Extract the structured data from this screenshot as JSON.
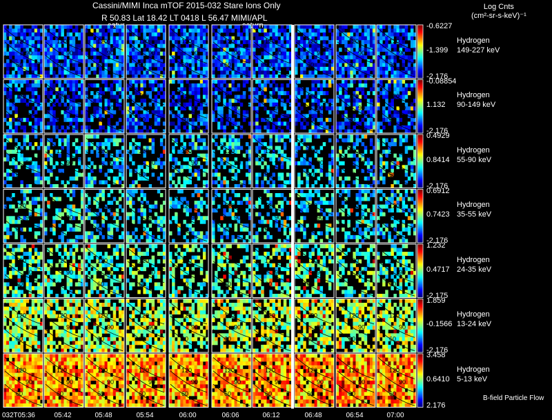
{
  "header": {
    "title": "Cassini/MIMI Inca mTOF  2015-032   Stare   Ions Only",
    "subtitle": "R        50.83 Lat 18.42 LT 0418 L         56.47  MIMI/APL",
    "units_line1": "Log Cnts",
    "units_line2": "(cm²-sr-s-keV)⁻¹",
    "saturn_labels": [
      "satur",
      "saturn"
    ]
  },
  "chart_data": {
    "type": "heatmap",
    "title": "Cassini/MIMI Inca mTOF  2015-032   Stare   Ions Only",
    "species": "Hydrogen",
    "panels": [
      {
        "species": "Hydrogen",
        "energy": "149-227 keV",
        "cmax": "-0.6227",
        "cmid": "-1.399",
        "cmin": "-2.176",
        "density": 0.78,
        "level": 0.18
      },
      {
        "species": "Hydrogen",
        "energy": "90-149 keV",
        "cmax": "-0.08854",
        "cmid": "1.132",
        "cmin": "-2.176",
        "density": 0.55,
        "level": 0.18
      },
      {
        "species": "Hydrogen",
        "energy": "55-90 keV",
        "cmax": "0.4929",
        "cmid": "0.8414",
        "cmin": "-2.176",
        "density": 0.42,
        "level": 0.33
      },
      {
        "species": "Hydrogen",
        "energy": "35-55 keV",
        "cmax": "0.6912",
        "cmid": "0.7423",
        "cmin": "-2.176",
        "density": 0.4,
        "level": 0.36
      },
      {
        "species": "Hydrogen",
        "energy": "24-35 keV",
        "cmax": "1.232",
        "cmid": "0.4717",
        "cmin": "-2.175",
        "density": 0.48,
        "level": 0.45
      },
      {
        "species": "Hydrogen",
        "energy": "13-24 keV",
        "cmax": "1.859",
        "cmid": "-0.1566",
        "cmin": "-2.176",
        "density": 0.68,
        "level": 0.55
      },
      {
        "species": "Hydrogen",
        "energy": "5-13 keV",
        "cmax": "3.458",
        "cmid": "0.6410",
        "cmin": "2.176",
        "density": 0.92,
        "level": 0.72
      }
    ],
    "x_ticks": [
      "032T05:36",
      "05:42",
      "05:48",
      "05:54",
      "06:00",
      "06:06",
      "06:12",
      "06:48",
      "06:54",
      "07:00"
    ],
    "contour_labels": [
      "120",
      "90",
      "60"
    ],
    "annotation": "B-field Particle Flow"
  }
}
